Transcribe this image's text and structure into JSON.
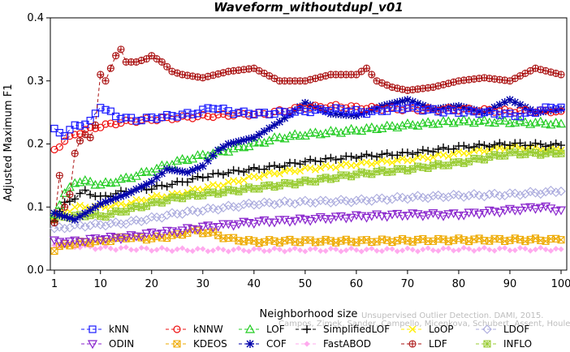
{
  "chart_data": {
    "type": "line",
    "title": "Waveform_withoutdupl_v01",
    "xlabel": "Neighborhood size",
    "ylabel": "Adjusted Maximum F1",
    "xlim": [
      0,
      100
    ],
    "ylim": [
      0,
      0.4
    ],
    "x_ticks": [
      "1",
      "10",
      "20",
      "30",
      "40",
      "50",
      "60",
      "70",
      "80",
      "90",
      "100"
    ],
    "y_ticks": [
      "0.0",
      "0.1",
      "0.2",
      "0.3",
      "0.4"
    ],
    "grid": false,
    "legend_position": "bottom",
    "watermark": [
      "Unsupervised Outlier Detection. DAMI, 2015.",
      "Campos, Zimek, Sander, Campello, Micenkova, Schubert, Assent, Houle"
    ],
    "series": [
      {
        "name": "kNN",
        "color": "#1a1aff",
        "marker": "square",
        "line": "dashed",
        "x": [
          1,
          3,
          5,
          8,
          10,
          13,
          17,
          22,
          28,
          32,
          36,
          42,
          50,
          56,
          62,
          70,
          76,
          85,
          92,
          98,
          100
        ],
        "y": [
          0.222,
          0.215,
          0.228,
          0.235,
          0.26,
          0.244,
          0.238,
          0.243,
          0.248,
          0.258,
          0.25,
          0.248,
          0.252,
          0.255,
          0.25,
          0.258,
          0.252,
          0.25,
          0.245,
          0.258,
          0.258
        ]
      },
      {
        "name": "kNNW",
        "color": "#ee1111",
        "marker": "circle",
        "line": "dashed",
        "x": [
          1,
          3,
          5,
          7,
          10,
          13,
          17,
          22,
          28,
          35,
          42,
          50,
          56,
          62,
          70,
          80,
          90,
          100
        ],
        "y": [
          0.19,
          0.205,
          0.215,
          0.222,
          0.228,
          0.233,
          0.237,
          0.24,
          0.243,
          0.246,
          0.248,
          0.258,
          0.26,
          0.257,
          0.255,
          0.255,
          0.252,
          0.252
        ]
      },
      {
        "name": "LOF",
        "color": "#22cc22",
        "marker": "triangle-up",
        "line": "dashed",
        "x": [
          1,
          3,
          5,
          8,
          10,
          15,
          20,
          25,
          30,
          35,
          40,
          45,
          50,
          60,
          70,
          80,
          90,
          100
        ],
        "y": [
          0.09,
          0.12,
          0.14,
          0.14,
          0.135,
          0.145,
          0.158,
          0.172,
          0.182,
          0.19,
          0.2,
          0.21,
          0.215,
          0.222,
          0.23,
          0.236,
          0.235,
          0.232
        ]
      },
      {
        "name": "SimplifiedLOF",
        "color": "#000000",
        "marker": "plus",
        "line": "dashed",
        "x": [
          1,
          3,
          5,
          7,
          10,
          15,
          20,
          25,
          30,
          35,
          40,
          45,
          50,
          60,
          70,
          80,
          90,
          100
        ],
        "y": [
          0.08,
          0.105,
          0.115,
          0.125,
          0.115,
          0.125,
          0.13,
          0.138,
          0.148,
          0.155,
          0.16,
          0.165,
          0.172,
          0.18,
          0.185,
          0.195,
          0.2,
          0.198
        ]
      },
      {
        "name": "LoOP",
        "color": "#ffee00",
        "marker": "x",
        "line": "dashed",
        "x": [
          1,
          3,
          5,
          8,
          10,
          15,
          20,
          25,
          30,
          35,
          40,
          45,
          50,
          60,
          70,
          80,
          90,
          100
        ],
        "y": [
          0.08,
          0.09,
          0.1,
          0.1,
          0.1,
          0.105,
          0.115,
          0.12,
          0.13,
          0.138,
          0.148,
          0.155,
          0.16,
          0.168,
          0.175,
          0.185,
          0.195,
          0.19
        ]
      },
      {
        "name": "LDOF",
        "color": "#aaaadd",
        "marker": "diamond",
        "line": "dashed",
        "x": [
          1,
          5,
          10,
          15,
          20,
          25,
          30,
          35,
          40,
          50,
          60,
          70,
          80,
          90,
          100
        ],
        "y": [
          0.065,
          0.07,
          0.072,
          0.075,
          0.082,
          0.09,
          0.095,
          0.1,
          0.105,
          0.108,
          0.11,
          0.115,
          0.118,
          0.12,
          0.125
        ]
      },
      {
        "name": "ODIN",
        "color": "#8822cc",
        "marker": "triangle-down",
        "line": "dashed",
        "x": [
          1,
          5,
          10,
          15,
          20,
          25,
          30,
          35,
          40,
          45,
          50,
          55,
          60,
          70,
          80,
          90,
          96,
          100
        ],
        "y": [
          0.045,
          0.045,
          0.05,
          0.052,
          0.058,
          0.062,
          0.068,
          0.072,
          0.076,
          0.078,
          0.08,
          0.083,
          0.085,
          0.088,
          0.088,
          0.095,
          0.1,
          0.095
        ]
      },
      {
        "name": "COF",
        "color": "#0000aa",
        "marker": "asterisk",
        "line": "dashed",
        "x": [
          1,
          3,
          5,
          8,
          10,
          15,
          20,
          23,
          27,
          30,
          33,
          35,
          40,
          45,
          50,
          55,
          60,
          65,
          70,
          75,
          80,
          85,
          90,
          95,
          100
        ],
        "y": [
          0.09,
          0.085,
          0.08,
          0.095,
          0.105,
          0.12,
          0.14,
          0.16,
          0.155,
          0.165,
          0.19,
          0.2,
          0.21,
          0.235,
          0.265,
          0.248,
          0.245,
          0.26,
          0.27,
          0.255,
          0.26,
          0.25,
          0.27,
          0.25,
          0.255
        ]
      },
      {
        "name": "FastABOD",
        "color": "#ffaaee",
        "marker": "diamond-small",
        "line": "dashed",
        "x": [
          1,
          5,
          10,
          20,
          30,
          40,
          50,
          60,
          70,
          80,
          90,
          100
        ],
        "y": [
          0.04,
          0.038,
          0.035,
          0.033,
          0.032,
          0.032,
          0.032,
          0.032,
          0.032,
          0.033,
          0.033,
          0.033
        ]
      },
      {
        "name": "LDF",
        "color": "#aa1111",
        "marker": "circle-plus",
        "line": "dashed",
        "x": [
          1,
          2,
          3,
          4,
          5,
          6,
          7,
          8,
          9,
          10,
          11,
          12,
          13,
          14,
          15,
          17,
          19,
          20,
          22,
          24,
          26,
          30,
          35,
          40,
          45,
          50,
          55,
          60,
          62,
          64,
          67,
          70,
          75,
          80,
          85,
          90,
          95,
          100
        ],
        "y": [
          0.075,
          0.15,
          0.1,
          0.12,
          0.185,
          0.205,
          0.215,
          0.21,
          0.23,
          0.31,
          0.3,
          0.32,
          0.34,
          0.35,
          0.33,
          0.33,
          0.335,
          0.34,
          0.33,
          0.315,
          0.31,
          0.305,
          0.315,
          0.32,
          0.3,
          0.3,
          0.31,
          0.31,
          0.32,
          0.3,
          0.29,
          0.285,
          0.29,
          0.3,
          0.305,
          0.3,
          0.32,
          0.31
        ]
      },
      {
        "name": "KDEOS",
        "color": "#eeaa00",
        "marker": "square-x",
        "line": "dashed",
        "x": [
          1,
          3,
          5,
          8,
          10,
          15,
          20,
          25,
          28,
          32,
          35,
          40,
          45,
          50,
          60,
          70,
          80,
          90,
          100
        ],
        "y": [
          0.032,
          0.04,
          0.042,
          0.045,
          0.045,
          0.052,
          0.05,
          0.055,
          0.063,
          0.058,
          0.05,
          0.045,
          0.046,
          0.046,
          0.046,
          0.047,
          0.048,
          0.048,
          0.048
        ]
      },
      {
        "name": "INFLO",
        "color": "#99cc33",
        "marker": "square-star",
        "line": "dashed",
        "x": [
          1,
          3,
          5,
          8,
          10,
          15,
          20,
          25,
          30,
          35,
          40,
          45,
          50,
          60,
          70,
          80,
          90,
          100
        ],
        "y": [
          0.08,
          0.085,
          0.085,
          0.088,
          0.085,
          0.095,
          0.105,
          0.115,
          0.12,
          0.125,
          0.13,
          0.135,
          0.14,
          0.152,
          0.16,
          0.17,
          0.185,
          0.185
        ]
      }
    ]
  }
}
